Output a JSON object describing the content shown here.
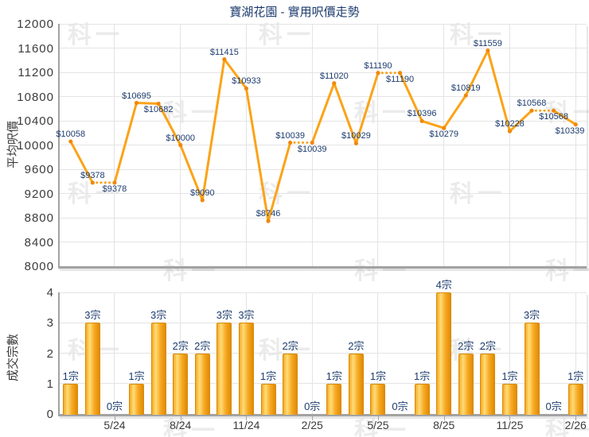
{
  "watermark_text": "科一",
  "colors": {
    "line": "#FBA318",
    "marker": "#F0880A",
    "value_label": "#1D3C6E",
    "title_text": "#1D3C6E",
    "bar_border": "#D88A06",
    "bar_light": "#FFDD77",
    "bar_mid": "#F7A823",
    "bar_dark": "#E08C05",
    "axis_line": "#A3A3A3",
    "grid_line": "#E4E4E4",
    "tick_text": "#3B3B3B",
    "watermark": "#DCDCDC"
  },
  "chart_data": [
    {
      "type": "line",
      "title": "寶湖花園 - 實用呎價走勢",
      "ylabel": "平均呎價",
      "ylim": [
        8000,
        12000
      ],
      "yticks": [
        8000,
        8400,
        8800,
        9200,
        9600,
        10000,
        10400,
        10800,
        11200,
        11600,
        12000
      ],
      "n_points": 24,
      "values": [
        10058,
        9378,
        9378,
        10695,
        10682,
        10000,
        9090,
        11415,
        10933,
        8746,
        10039,
        10039,
        11020,
        10029,
        11190,
        11190,
        10396,
        10279,
        10819,
        11559,
        10228,
        10568,
        10568,
        10339
      ],
      "label_prefix": "$",
      "label_side": [
        "above",
        "above",
        "below",
        "above",
        "below",
        "above",
        "above",
        "above",
        "above",
        "above",
        "above",
        "below",
        "above",
        "above",
        "above",
        "below",
        "above",
        "below",
        "above",
        "above",
        "above",
        "above",
        "below",
        "below"
      ],
      "dotted_segment_end_slots": [
        3,
        12,
        16,
        23
      ],
      "grid": true,
      "legend": "none"
    },
    {
      "type": "bar",
      "ylabel": "成交宗數",
      "ylim": [
        0,
        4
      ],
      "yticks": [
        0,
        1,
        2,
        3,
        4
      ],
      "values": [
        1,
        3,
        0,
        1,
        3,
        2,
        2,
        3,
        3,
        1,
        2,
        0,
        1,
        2,
        1,
        0,
        1,
        4,
        2,
        2,
        1,
        3,
        0,
        1
      ],
      "label_suffix": "宗",
      "x_ticks": [
        {
          "slot": 3,
          "label": "5/24"
        },
        {
          "slot": 6,
          "label": "8/24"
        },
        {
          "slot": 9,
          "label": "11/24"
        },
        {
          "slot": 12,
          "label": "2/25"
        },
        {
          "slot": 15,
          "label": "5/25"
        },
        {
          "slot": 18,
          "label": "8/25"
        },
        {
          "slot": 21,
          "label": "11/25"
        },
        {
          "slot": 24,
          "label": "2/26"
        }
      ],
      "grid": true
    }
  ]
}
